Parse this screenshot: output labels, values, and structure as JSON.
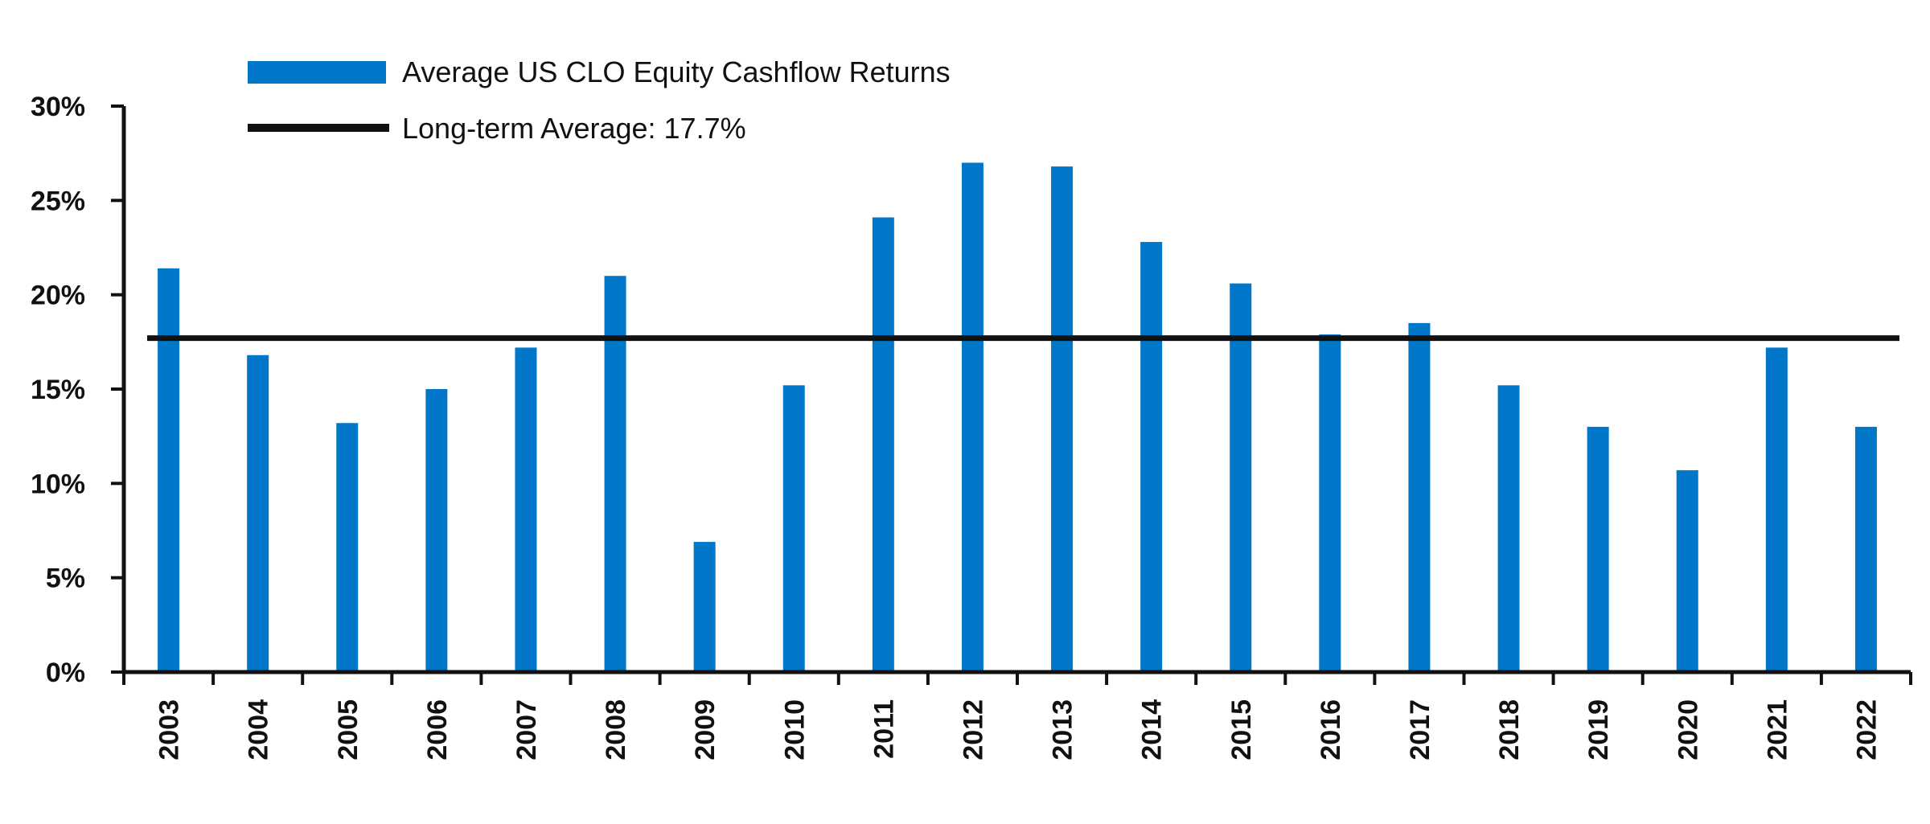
{
  "chart_data": {
    "type": "bar",
    "categories": [
      "2003",
      "2004",
      "2005",
      "2006",
      "2007",
      "2008",
      "2009",
      "2010",
      "2011",
      "2012",
      "2013",
      "2014",
      "2015",
      "2016",
      "2017",
      "2018",
      "2019",
      "2020",
      "2021",
      "2022"
    ],
    "series": [
      {
        "name": "Average US CLO Equity Cashflow Returns",
        "values": [
          21.4,
          16.8,
          13.2,
          15.0,
          17.2,
          21.0,
          6.9,
          15.2,
          24.1,
          27.0,
          26.8,
          22.8,
          20.6,
          17.9,
          18.5,
          15.2,
          13.0,
          10.7,
          17.2,
          13.0
        ],
        "color": "#0077C8"
      }
    ],
    "reference_line": {
      "name": "Long-term Average: 17.7%",
      "value": 17.7,
      "color": "#111111"
    },
    "ylim": [
      0,
      30
    ],
    "yticks": [
      0,
      5,
      10,
      15,
      20,
      25,
      30
    ],
    "ytick_labels": [
      "0%",
      "5%",
      "10%",
      "15%",
      "20%",
      "25%",
      "30%"
    ],
    "legend_position": "top-left",
    "grid": false,
    "title": "",
    "xlabel": "",
    "ylabel": ""
  }
}
